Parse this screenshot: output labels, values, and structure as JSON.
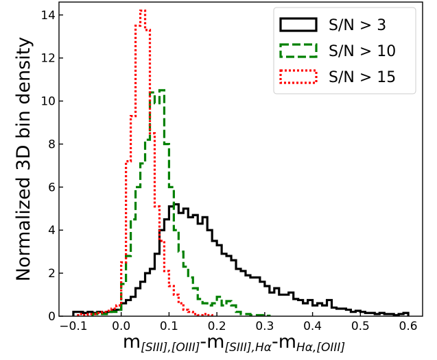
{
  "chart_data": {
    "type": "histogram",
    "xlabel_parts": [
      "m",
      "[SIII],[OIII]",
      "-m",
      "[SIII],Hα",
      "-m",
      "Hα,[OIII]"
    ],
    "ylabel": "Normalized 3D bin density",
    "xlim": [
      -0.13,
      0.63
    ],
    "ylim": [
      0,
      14.6
    ],
    "xticks": [
      -0.1,
      0.0,
      0.1,
      0.2,
      0.3,
      0.4,
      0.5,
      0.6
    ],
    "xtick_labels": [
      "−0.1",
      "0.0",
      "0.1",
      "0.2",
      "0.3",
      "0.4",
      "0.5",
      "0.6"
    ],
    "yticks": [
      0,
      2,
      4,
      6,
      8,
      10,
      12,
      14
    ],
    "ytick_labels": [
      "0",
      "2",
      "4",
      "6",
      "8",
      "10",
      "12",
      "14"
    ],
    "legend_position": "top-right",
    "bin_width": 0.01,
    "series": [
      {
        "name": "S/N > 3",
        "color": "#000000",
        "dash": "solid",
        "bins": [
          [
            -0.1,
            0.2
          ],
          [
            -0.09,
            0.2
          ],
          [
            -0.08,
            0.15
          ],
          [
            -0.07,
            0.2
          ],
          [
            -0.06,
            0.15
          ],
          [
            -0.05,
            0.2
          ],
          [
            -0.04,
            0.15
          ],
          [
            -0.03,
            0.2
          ],
          [
            -0.02,
            0.3
          ],
          [
            -0.01,
            0.3
          ],
          [
            0.0,
            0.6
          ],
          [
            0.01,
            0.75
          ],
          [
            0.02,
            0.9
          ],
          [
            0.03,
            1.3
          ],
          [
            0.04,
            1.6
          ],
          [
            0.05,
            2.0
          ],
          [
            0.06,
            2.2
          ],
          [
            0.07,
            2.9
          ],
          [
            0.08,
            4.0
          ],
          [
            0.09,
            4.5
          ],
          [
            0.1,
            5.1
          ],
          [
            0.11,
            5.2
          ],
          [
            0.12,
            4.8
          ],
          [
            0.13,
            5.0
          ],
          [
            0.14,
            4.6
          ],
          [
            0.15,
            4.7
          ],
          [
            0.16,
            4.3
          ],
          [
            0.17,
            4.6
          ],
          [
            0.18,
            4.0
          ],
          [
            0.19,
            3.5
          ],
          [
            0.2,
            3.3
          ],
          [
            0.21,
            2.9
          ],
          [
            0.22,
            2.8
          ],
          [
            0.23,
            2.6
          ],
          [
            0.24,
            2.2
          ],
          [
            0.25,
            2.1
          ],
          [
            0.26,
            1.9
          ],
          [
            0.27,
            1.8
          ],
          [
            0.28,
            1.8
          ],
          [
            0.29,
            1.6
          ],
          [
            0.3,
            1.4
          ],
          [
            0.31,
            1.1
          ],
          [
            0.32,
            1.3
          ],
          [
            0.33,
            1.0
          ],
          [
            0.34,
            1.0
          ],
          [
            0.35,
            1.1
          ],
          [
            0.36,
            0.8
          ],
          [
            0.37,
            0.75
          ],
          [
            0.38,
            0.6
          ],
          [
            0.39,
            0.75
          ],
          [
            0.4,
            0.5
          ],
          [
            0.41,
            0.6
          ],
          [
            0.42,
            0.5
          ],
          [
            0.43,
            0.75
          ],
          [
            0.44,
            0.4
          ],
          [
            0.45,
            0.35
          ],
          [
            0.46,
            0.35
          ],
          [
            0.47,
            0.3
          ],
          [
            0.48,
            0.2
          ],
          [
            0.49,
            0.25
          ],
          [
            0.5,
            0.2
          ],
          [
            0.51,
            0.15
          ],
          [
            0.52,
            0.15
          ],
          [
            0.53,
            0.1
          ],
          [
            0.54,
            0.15
          ],
          [
            0.55,
            0.1
          ],
          [
            0.56,
            0.1
          ],
          [
            0.57,
            0.05
          ],
          [
            0.58,
            0.1
          ],
          [
            0.59,
            0.15
          ]
        ]
      },
      {
        "name": "S/N > 10",
        "color": "#008000",
        "dash": "dashed",
        "bins": [
          [
            -0.06,
            0.1
          ],
          [
            -0.05,
            0.15
          ],
          [
            -0.04,
            0.1
          ],
          [
            -0.03,
            0.2
          ],
          [
            -0.02,
            0.2
          ],
          [
            -0.01,
            0.3
          ],
          [
            0.0,
            1.5
          ],
          [
            0.01,
            2.8
          ],
          [
            0.02,
            4.5
          ],
          [
            0.03,
            6.0
          ],
          [
            0.04,
            7.1
          ],
          [
            0.05,
            8.2
          ],
          [
            0.06,
            10.4
          ],
          [
            0.07,
            9.9
          ],
          [
            0.08,
            10.5
          ],
          [
            0.09,
            8.0
          ],
          [
            0.1,
            6.0
          ],
          [
            0.11,
            4.0
          ],
          [
            0.12,
            3.0
          ],
          [
            0.13,
            2.3
          ],
          [
            0.14,
            1.8
          ],
          [
            0.15,
            1.3
          ],
          [
            0.16,
            0.8
          ],
          [
            0.17,
            0.6
          ],
          [
            0.18,
            0.5
          ],
          [
            0.19,
            0.6
          ],
          [
            0.2,
            0.9
          ],
          [
            0.21,
            0.5
          ],
          [
            0.22,
            0.7
          ],
          [
            0.23,
            0.5
          ],
          [
            0.24,
            0.2
          ],
          [
            0.25,
            0.1
          ],
          [
            0.26,
            0.1
          ],
          [
            0.27,
            0.05
          ],
          [
            0.28,
            0.05
          ],
          [
            0.29,
            0.05
          ],
          [
            0.3,
            0.02
          ]
        ]
      },
      {
        "name": "S/N > 15",
        "color": "#ff0000",
        "dash": "dotted",
        "bins": [
          [
            -0.09,
            0.1
          ],
          [
            -0.08,
            0.05
          ],
          [
            -0.07,
            0.1
          ],
          [
            -0.06,
            0.1
          ],
          [
            -0.05,
            0.15
          ],
          [
            -0.04,
            0.2
          ],
          [
            -0.03,
            0.25
          ],
          [
            -0.02,
            0.35
          ],
          [
            -0.01,
            0.5
          ],
          [
            0.0,
            2.5
          ],
          [
            0.01,
            7.2
          ],
          [
            0.02,
            9.3
          ],
          [
            0.03,
            13.5
          ],
          [
            0.04,
            14.2
          ],
          [
            0.05,
            13.3
          ],
          [
            0.06,
            8.5
          ],
          [
            0.07,
            5.1
          ],
          [
            0.08,
            3.5
          ],
          [
            0.09,
            2.1
          ],
          [
            0.1,
            1.4
          ],
          [
            0.11,
            1.0
          ],
          [
            0.12,
            0.6
          ],
          [
            0.13,
            0.3
          ],
          [
            0.14,
            0.2
          ],
          [
            0.15,
            0.1
          ],
          [
            0.16,
            0.05
          ],
          [
            0.17,
            0.1
          ],
          [
            0.18,
            0.05
          ]
        ]
      }
    ]
  }
}
